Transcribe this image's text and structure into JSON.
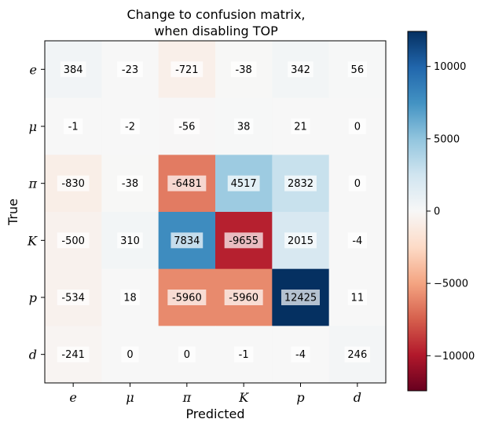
{
  "chart_data": {
    "type": "heatmap",
    "title": "Change to confusion matrix,\nwhen disabling TOP",
    "xlabel": "Predicted",
    "ylabel": "True",
    "x_categories": [
      "e",
      "μ",
      "π",
      "K",
      "p",
      "d"
    ],
    "y_categories": [
      "e",
      "μ",
      "π",
      "K",
      "p",
      "d"
    ],
    "values": [
      [
        384,
        -23,
        -721,
        -38,
        342,
        56
      ],
      [
        -1,
        -2,
        -56,
        38,
        21,
        0
      ],
      [
        -830,
        -38,
        -6481,
        4517,
        2832,
        0
      ],
      [
        -500,
        310,
        7834,
        -9655,
        2015,
        -4
      ],
      [
        -534,
        18,
        -5960,
        -5960,
        12425,
        11
      ],
      [
        -241,
        0,
        0,
        -1,
        -4,
        246
      ]
    ],
    "colormap": "RdBu",
    "color_range": [
      -12425,
      12425
    ],
    "colorbar_ticks": [
      10000,
      5000,
      0,
      -5000,
      -10000
    ],
    "colorbar_tick_labels": [
      "10000",
      "5000",
      "0",
      "−5000",
      "−10000"
    ]
  }
}
